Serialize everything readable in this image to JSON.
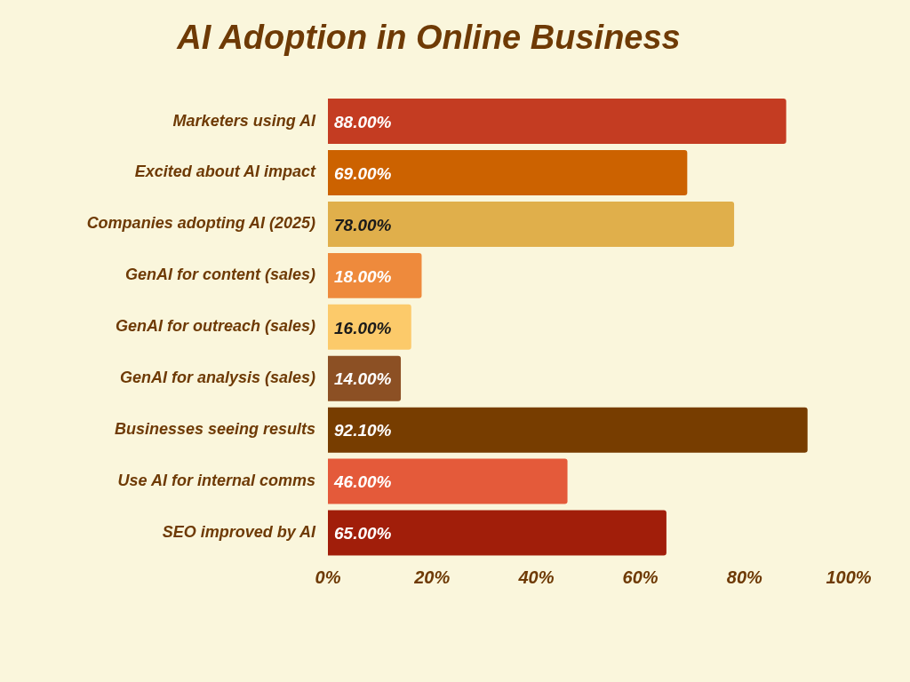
{
  "chart_data": {
    "type": "bar",
    "orientation": "horizontal",
    "title": "AI Adoption in Online Business",
    "categories": [
      "Marketers using AI",
      "Excited about AI impact",
      "Companies adopting AI (2025)",
      "GenAI for content (sales)",
      "GenAI for outreach (sales)",
      "GenAI for analysis (sales)",
      "Businesses seeing results",
      "Use AI for internal comms",
      "SEO improved by AI"
    ],
    "values": [
      88,
      69,
      78,
      18,
      16,
      14,
      92.1,
      46,
      65
    ],
    "value_labels": [
      "88.00%",
      "69.00%",
      "78.00%",
      "18.00%",
      "16.00%",
      "14.00%",
      "92.10%",
      "46.00%",
      "65.00%"
    ],
    "colors": [
      "#c43c22",
      "#cc6200",
      "#e0af4b",
      "#ee8a3c",
      "#fcca6a",
      "#8c5024",
      "#773d00",
      "#e45a3a",
      "#a11e0a"
    ],
    "xlim": [
      0,
      100
    ],
    "xticks": [
      {
        "value": 0,
        "label": "0%"
      },
      {
        "value": 20,
        "label": "20%"
      },
      {
        "value": 40,
        "label": "40%"
      },
      {
        "value": 60,
        "label": "60%"
      },
      {
        "value": 80,
        "label": "80%"
      },
      {
        "value": 100,
        "label": "100%"
      }
    ],
    "grid": false,
    "legend": false
  }
}
